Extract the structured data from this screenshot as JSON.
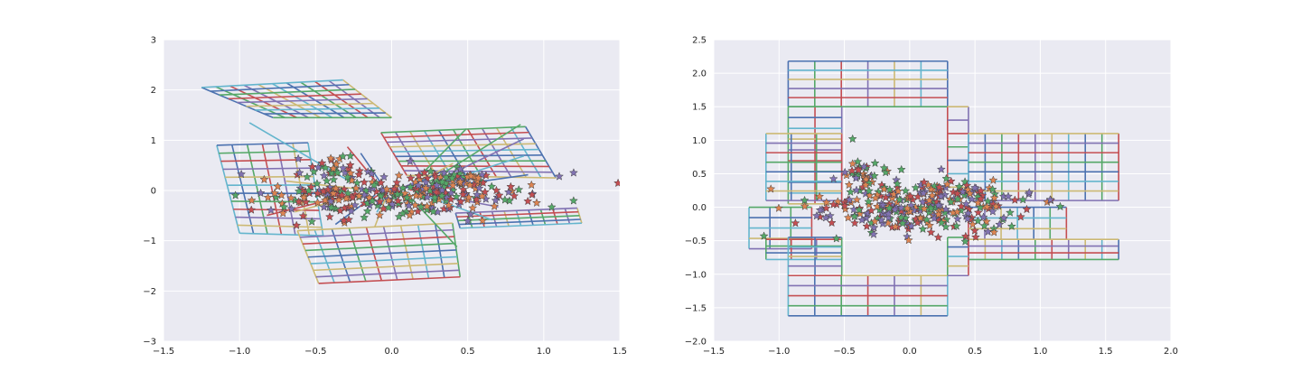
{
  "theme": {
    "axes_background": "#EAEAF2",
    "grid_color": "#FFFFFF",
    "palette": [
      "#4C72B0",
      "#55A868",
      "#C44E52",
      "#8172B2",
      "#CCB974",
      "#64B5CD"
    ],
    "star_colors": [
      "#C44E52",
      "#55A868",
      "#8172B2",
      "#DD8452"
    ],
    "star_edge": "#444444"
  },
  "chart_data": [
    {
      "type": "line",
      "description_marks": "warped grid polylines with star scatter",
      "xlim": [
        -1.5,
        1.5
      ],
      "ylim": [
        -3,
        3
      ],
      "xticks": [
        -1.5,
        -1.0,
        -0.5,
        0.0,
        0.5,
        1.0,
        1.5
      ],
      "xtick_labels": [
        "−1.5",
        "−1.0",
        "−0.5",
        "0.0",
        "0.5",
        "1.0",
        "1.5"
      ],
      "yticks": [
        -3,
        -2,
        -1,
        0,
        1,
        2,
        3
      ],
      "ytick_labels": [
        "−3",
        "−2",
        "−1",
        "0",
        "1",
        "2",
        "3"
      ],
      "grid": true,
      "warped_grid_quads": [
        {
          "corners": [
            [
              -1.25,
              2.05
            ],
            [
              -0.32,
              2.2
            ],
            [
              0.0,
              1.45
            ],
            [
              -0.78,
              1.45
            ]
          ],
          "nu": 10,
          "nv": 8
        },
        {
          "corners": [
            [
              -0.07,
              1.15
            ],
            [
              0.88,
              1.27
            ],
            [
              1.08,
              0.25
            ],
            [
              0.1,
              0.3
            ]
          ],
          "nu": 10,
          "nv": 9
        },
        {
          "corners": [
            [
              -1.15,
              0.9
            ],
            [
              -0.55,
              0.95
            ],
            [
              -0.45,
              -0.9
            ],
            [
              -1.0,
              -0.85
            ]
          ],
          "nu": 6,
          "nv": 11
        },
        {
          "corners": [
            [
              0.45,
              -0.75
            ],
            [
              1.25,
              -0.65
            ],
            [
              1.22,
              -0.35
            ],
            [
              0.42,
              -0.45
            ]
          ],
          "nu": 10,
          "nv": 4
        },
        {
          "corners": [
            [
              -0.48,
              -1.85
            ],
            [
              0.45,
              -1.72
            ],
            [
              0.4,
              -0.65
            ],
            [
              -0.62,
              -0.8
            ]
          ],
          "nu": 9,
          "nv": 8
        }
      ],
      "connector_fan": {
        "apex": [
          0.0,
          0.0
        ],
        "count": 24,
        "spread": [
          -1.1,
          1.2,
          -1.7,
          2.1
        ]
      },
      "scatter": {
        "marker": "star",
        "count": 380,
        "center": [
          0.0,
          -0.1
        ],
        "spread": [
          0.45,
          0.22
        ],
        "tail": [
          [
            -0.5,
            0.65
          ],
          [
            0.6,
            0.3
          ]
        ]
      }
    },
    {
      "type": "line",
      "description_marks": "axis-aligned grid blocks with star scatter",
      "xlim": [
        -1.5,
        2.0
      ],
      "ylim": [
        -2.0,
        2.5
      ],
      "xticks": [
        -1.5,
        -1.0,
        -0.5,
        0.0,
        0.5,
        1.0,
        1.5,
        2.0
      ],
      "xtick_labels": [
        "−1.5",
        "−1.0",
        "−0.5",
        "0.0",
        "0.5",
        "1.0",
        "1.5",
        "2.0"
      ],
      "yticks": [
        -2.0,
        -1.5,
        -1.0,
        -0.5,
        0.0,
        0.5,
        1.0,
        1.5,
        2.0,
        2.5
      ],
      "ytick_labels": [
        "−2.0",
        "−1.5",
        "−1.0",
        "−0.5",
        "0.0",
        "0.5",
        "1.0",
        "1.5",
        "2.0",
        "2.5"
      ],
      "grid": true,
      "grid_blocks": [
        {
          "x": [
            -0.93,
            0.29
          ],
          "y": [
            1.5,
            2.18
          ],
          "nu": 6,
          "nv": 5
        },
        {
          "x": [
            -0.93,
            -0.52
          ],
          "y": [
            0.05,
            1.5
          ],
          "nu": 2,
          "nv": 9
        },
        {
          "x": [
            0.29,
            0.45
          ],
          "y": [
            0.3,
            1.5
          ],
          "nu": 1,
          "nv": 6
        },
        {
          "x": [
            -1.1,
            -0.52
          ],
          "y": [
            0.1,
            1.1
          ],
          "nu": 3,
          "nv": 7
        },
        {
          "x": [
            0.45,
            1.6
          ],
          "y": [
            0.1,
            1.1
          ],
          "nu": 9,
          "nv": 7
        },
        {
          "x": [
            -1.23,
            -0.75
          ],
          "y": [
            -0.62,
            0.0
          ],
          "nu": 3,
          "nv": 4
        },
        {
          "x": [
            0.45,
            1.2
          ],
          "y": [
            -0.48,
            0.0
          ],
          "nu": 6,
          "nv": 3
        },
        {
          "x": [
            -1.1,
            -0.52
          ],
          "y": [
            -0.78,
            -0.48
          ],
          "nu": 3,
          "nv": 3
        },
        {
          "x": [
            0.45,
            1.6
          ],
          "y": [
            -0.78,
            -0.48
          ],
          "nu": 9,
          "nv": 3
        },
        {
          "x": [
            -0.93,
            0.29
          ],
          "y": [
            -1.62,
            -1.02
          ],
          "nu": 6,
          "nv": 4
        },
        {
          "x": [
            -0.93,
            -0.52
          ],
          "y": [
            -1.02,
            -0.45
          ],
          "nu": 2,
          "nv": 4
        },
        {
          "x": [
            0.29,
            0.45
          ],
          "y": [
            -1.02,
            -0.45
          ],
          "nu": 1,
          "nv": 4
        }
      ],
      "scatter": {
        "marker": "star",
        "count": 360,
        "center": [
          0.05,
          -0.02
        ],
        "spread": [
          0.38,
          0.2
        ],
        "tail": [
          [
            -0.5,
            0.6
          ],
          [
            0.55,
            0.3
          ]
        ]
      }
    }
  ]
}
